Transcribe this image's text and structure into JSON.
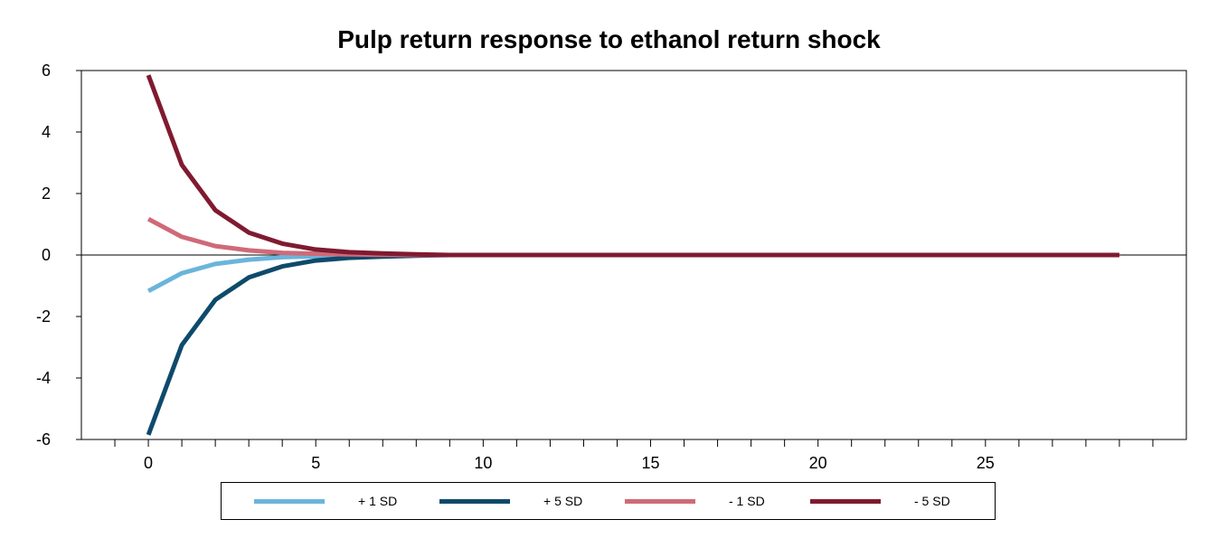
{
  "chart_data": {
    "type": "line",
    "title": "Pulp return response to ethanol return shock",
    "xlabel": "",
    "ylabel": "",
    "xlim": [
      -2,
      31
    ],
    "ylim": [
      -6,
      6
    ],
    "x_ticks": [
      0,
      5,
      10,
      15,
      20,
      25
    ],
    "y_ticks": [
      6,
      4,
      2,
      0,
      -2,
      -4,
      -6
    ],
    "x": [
      0,
      1,
      2,
      3,
      4,
      5,
      6,
      7,
      8,
      9,
      10,
      11,
      12,
      13,
      14,
      15,
      16,
      17,
      18,
      19,
      20,
      21,
      22,
      23,
      24,
      25,
      26,
      27,
      28,
      29
    ],
    "series": [
      {
        "name": "+ 1 SD",
        "color": "#6ab4dc",
        "values": [
          -1.17,
          -0.59,
          -0.29,
          -0.15,
          -0.07,
          -0.04,
          -0.02,
          -0.01,
          0,
          0,
          0,
          0,
          0,
          0,
          0,
          0,
          0,
          0,
          0,
          0,
          0,
          0,
          0,
          0,
          0,
          0,
          0,
          0,
          0,
          0
        ]
      },
      {
        "name": "+ 5 SD",
        "color": "#0e4a6b",
        "values": [
          -5.85,
          -2.93,
          -1.46,
          -0.73,
          -0.37,
          -0.18,
          -0.09,
          -0.05,
          -0.02,
          0,
          0,
          0,
          0,
          0,
          0,
          0,
          0,
          0,
          0,
          0,
          0,
          0,
          0,
          0,
          0,
          0,
          0,
          0,
          0,
          0
        ]
      },
      {
        "name": "- 1 SD",
        "color": "#cf6a78",
        "values": [
          1.17,
          0.59,
          0.29,
          0.15,
          0.07,
          0.04,
          0.02,
          0.01,
          0,
          0,
          0,
          0,
          0,
          0,
          0,
          0,
          0,
          0,
          0,
          0,
          0,
          0,
          0,
          0,
          0,
          0,
          0,
          0,
          0,
          0
        ]
      },
      {
        "name": "- 5 SD",
        "color": "#801a30",
        "values": [
          5.85,
          2.93,
          1.46,
          0.73,
          0.37,
          0.18,
          0.09,
          0.05,
          0.02,
          0,
          0,
          0,
          0,
          0,
          0,
          0,
          0,
          0,
          0,
          0,
          0,
          0,
          0,
          0,
          0,
          0,
          0,
          0,
          0,
          0
        ]
      }
    ],
    "grid": false,
    "legend_position": "bottom"
  }
}
